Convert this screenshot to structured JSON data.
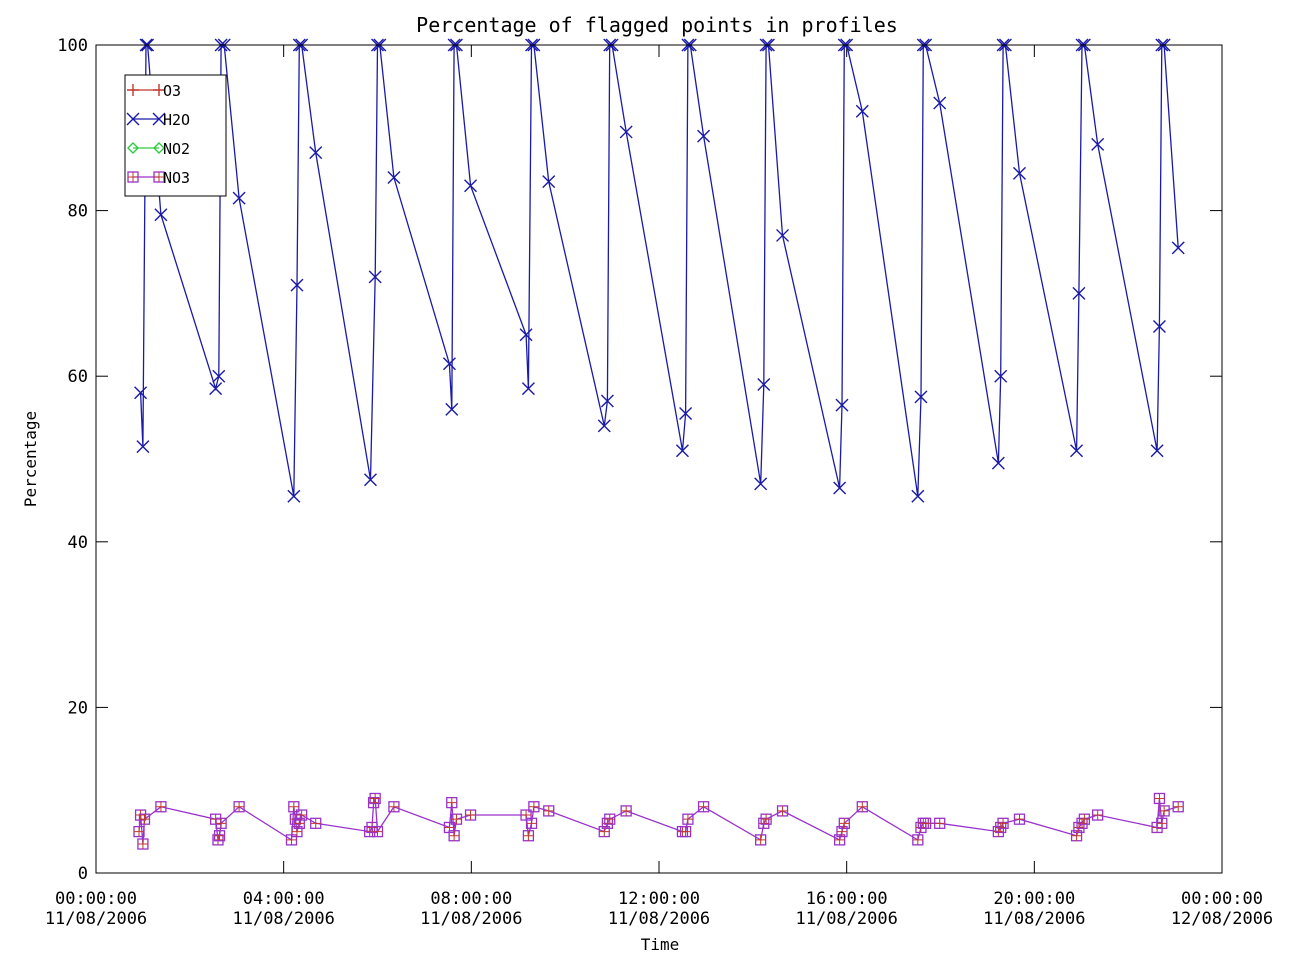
{
  "chart_data": {
    "type": "line",
    "title": "Percentage of flagged points in profiles",
    "xlabel": "Time",
    "ylabel": "Percentage",
    "xlim": [
      "2006-08-11 00:00",
      "2006-08-12 00:00"
    ],
    "ylim": [
      0,
      100
    ],
    "yticks": [
      0,
      20,
      40,
      60,
      80,
      100
    ],
    "xticks": [
      {
        "time": "00:00:00",
        "date": "11/08/2006"
      },
      {
        "time": "04:00:00",
        "date": "11/08/2006"
      },
      {
        "time": "08:00:00",
        "date": "11/08/2006"
      },
      {
        "time": "12:00:00",
        "date": "11/08/2006"
      },
      {
        "time": "16:00:00",
        "date": "11/08/2006"
      },
      {
        "time": "20:00:00",
        "date": "11/08/2006"
      },
      {
        "time": "00:00:00",
        "date": "12/08/2006"
      }
    ],
    "legend": {
      "placement": "top-left",
      "entries": [
        "O3",
        "H2O",
        "NO2",
        "NO3"
      ]
    },
    "series": [
      {
        "name": "H2O",
        "color": "#1a1aa8",
        "marker": "x",
        "x": [
          "2006-08-11 00:57",
          "2006-08-11 01:00",
          "2006-08-11 01:04",
          "2006-08-11 01:06",
          "2006-08-11 01:23",
          "2006-08-11 02:33",
          "2006-08-11 02:37",
          "2006-08-11 02:40",
          "2006-08-11 02:44",
          "2006-08-11 03:03",
          "2006-08-11 04:13",
          "2006-08-11 04:17",
          "2006-08-11 04:20",
          "2006-08-11 04:23",
          "2006-08-11 04:41",
          "2006-08-11 05:51",
          "2006-08-11 05:57",
          "2006-08-11 06:00",
          "2006-08-11 06:03",
          "2006-08-11 06:21",
          "2006-08-11 07:32",
          "2006-08-11 07:35",
          "2006-08-11 07:38",
          "2006-08-11 07:41",
          "2006-08-11 07:59",
          "2006-08-11 09:10",
          "2006-08-11 09:13",
          "2006-08-11 09:17",
          "2006-08-11 09:20",
          "2006-08-11 09:39",
          "2006-08-11 10:50",
          "2006-08-11 10:54",
          "2006-08-11 10:57",
          "2006-08-11 11:00",
          "2006-08-11 11:18",
          "2006-08-11 12:30",
          "2006-08-11 12:34",
          "2006-08-11 12:37",
          "2006-08-11 12:40",
          "2006-08-11 12:57",
          "2006-08-11 14:10",
          "2006-08-11 14:14",
          "2006-08-11 14:17",
          "2006-08-11 14:20",
          "2006-08-11 14:38",
          "2006-08-11 15:51",
          "2006-08-11 15:54",
          "2006-08-11 15:57",
          "2006-08-11 16:00",
          "2006-08-11 16:20",
          "2006-08-11 17:31",
          "2006-08-11 17:35",
          "2006-08-11 17:38",
          "2006-08-11 17:41",
          "2006-08-11 17:59",
          "2006-08-11 19:14",
          "2006-08-11 19:17",
          "2006-08-11 19:20",
          "2006-08-11 19:23",
          "2006-08-11 19:41",
          "2006-08-11 20:54",
          "2006-08-11 20:57",
          "2006-08-11 21:01",
          "2006-08-11 21:04",
          "2006-08-11 21:21",
          "2006-08-11 22:37",
          "2006-08-11 22:40",
          "2006-08-11 22:43",
          "2006-08-11 22:46",
          "2006-08-11 23:04"
        ],
        "y": [
          58,
          51.5,
          100,
          100,
          79.5,
          58.5,
          60,
          100,
          100,
          81.5,
          45.5,
          71,
          100,
          100,
          87,
          47.5,
          72,
          100,
          100,
          84,
          61.5,
          56,
          100,
          100,
          83,
          65,
          58.5,
          100,
          100,
          83.5,
          54,
          57,
          100,
          100,
          89.5,
          51,
          55.5,
          100,
          100,
          89,
          47,
          59,
          100,
          100,
          77,
          46.5,
          56.5,
          100,
          100,
          92,
          45.5,
          57.5,
          100,
          100,
          93,
          49.5,
          60,
          100,
          100,
          84.5,
          51,
          70,
          100,
          100,
          88,
          51,
          66,
          100,
          100,
          75.5
        ]
      },
      {
        "name": "NO3",
        "color": "#9932cc",
        "marker": "square",
        "x": [
          "2006-08-11 00:55",
          "2006-08-11 00:57",
          "2006-08-11 01:00",
          "2006-08-11 01:02",
          "2006-08-11 01:23",
          "2006-08-11 02:33",
          "2006-08-11 02:36",
          "2006-08-11 02:38",
          "2006-08-11 02:40",
          "2006-08-11 03:03",
          "2006-08-11 04:10",
          "2006-08-11 04:13",
          "2006-08-11 04:15",
          "2006-08-11 04:17",
          "2006-08-11 04:20",
          "2006-08-11 04:23",
          "2006-08-11 04:41",
          "2006-08-11 05:50",
          "2006-08-11 05:53",
          "2006-08-11 05:55",
          "2006-08-11 05:57",
          "2006-08-11 06:00",
          "2006-08-11 06:21",
          "2006-08-11 07:32",
          "2006-08-11 07:35",
          "2006-08-11 07:38",
          "2006-08-11 07:41",
          "2006-08-11 07:59",
          "2006-08-11 09:10",
          "2006-08-11 09:13",
          "2006-08-11 09:17",
          "2006-08-11 09:20",
          "2006-08-11 09:39",
          "2006-08-11 10:50",
          "2006-08-11 10:54",
          "2006-08-11 10:57",
          "2006-08-11 11:18",
          "2006-08-11 12:30",
          "2006-08-11 12:34",
          "2006-08-11 12:37",
          "2006-08-11 12:57",
          "2006-08-11 14:10",
          "2006-08-11 14:14",
          "2006-08-11 14:17",
          "2006-08-11 14:38",
          "2006-08-11 15:51",
          "2006-08-11 15:54",
          "2006-08-11 15:57",
          "2006-08-11 16:20",
          "2006-08-11 17:31",
          "2006-08-11 17:35",
          "2006-08-11 17:38",
          "2006-08-11 17:41",
          "2006-08-11 17:59",
          "2006-08-11 19:14",
          "2006-08-11 19:17",
          "2006-08-11 19:20",
          "2006-08-11 19:41",
          "2006-08-11 20:54",
          "2006-08-11 20:57",
          "2006-08-11 21:01",
          "2006-08-11 21:04",
          "2006-08-11 21:21",
          "2006-08-11 22:37",
          "2006-08-11 22:40",
          "2006-08-11 22:43",
          "2006-08-11 22:46",
          "2006-08-11 23:04"
        ],
        "y": [
          5,
          7,
          3.5,
          6.5,
          8,
          6.5,
          4,
          4.5,
          6,
          8,
          4,
          8,
          6.5,
          5,
          6,
          7,
          6,
          5,
          5.5,
          8.5,
          9,
          5,
          8,
          5.5,
          8.5,
          4.5,
          6.5,
          7,
          7,
          4.5,
          6,
          8,
          7.5,
          5,
          6,
          6.5,
          7.5,
          5,
          5,
          6.5,
          8,
          4,
          6,
          6.5,
          7.5,
          4,
          5,
          6,
          8,
          4,
          5.5,
          6,
          6,
          6,
          5,
          5.5,
          6,
          6.5,
          4.5,
          5.5,
          6,
          6.5,
          7,
          5.5,
          9,
          6,
          7.5,
          8
        ]
      }
    ]
  }
}
